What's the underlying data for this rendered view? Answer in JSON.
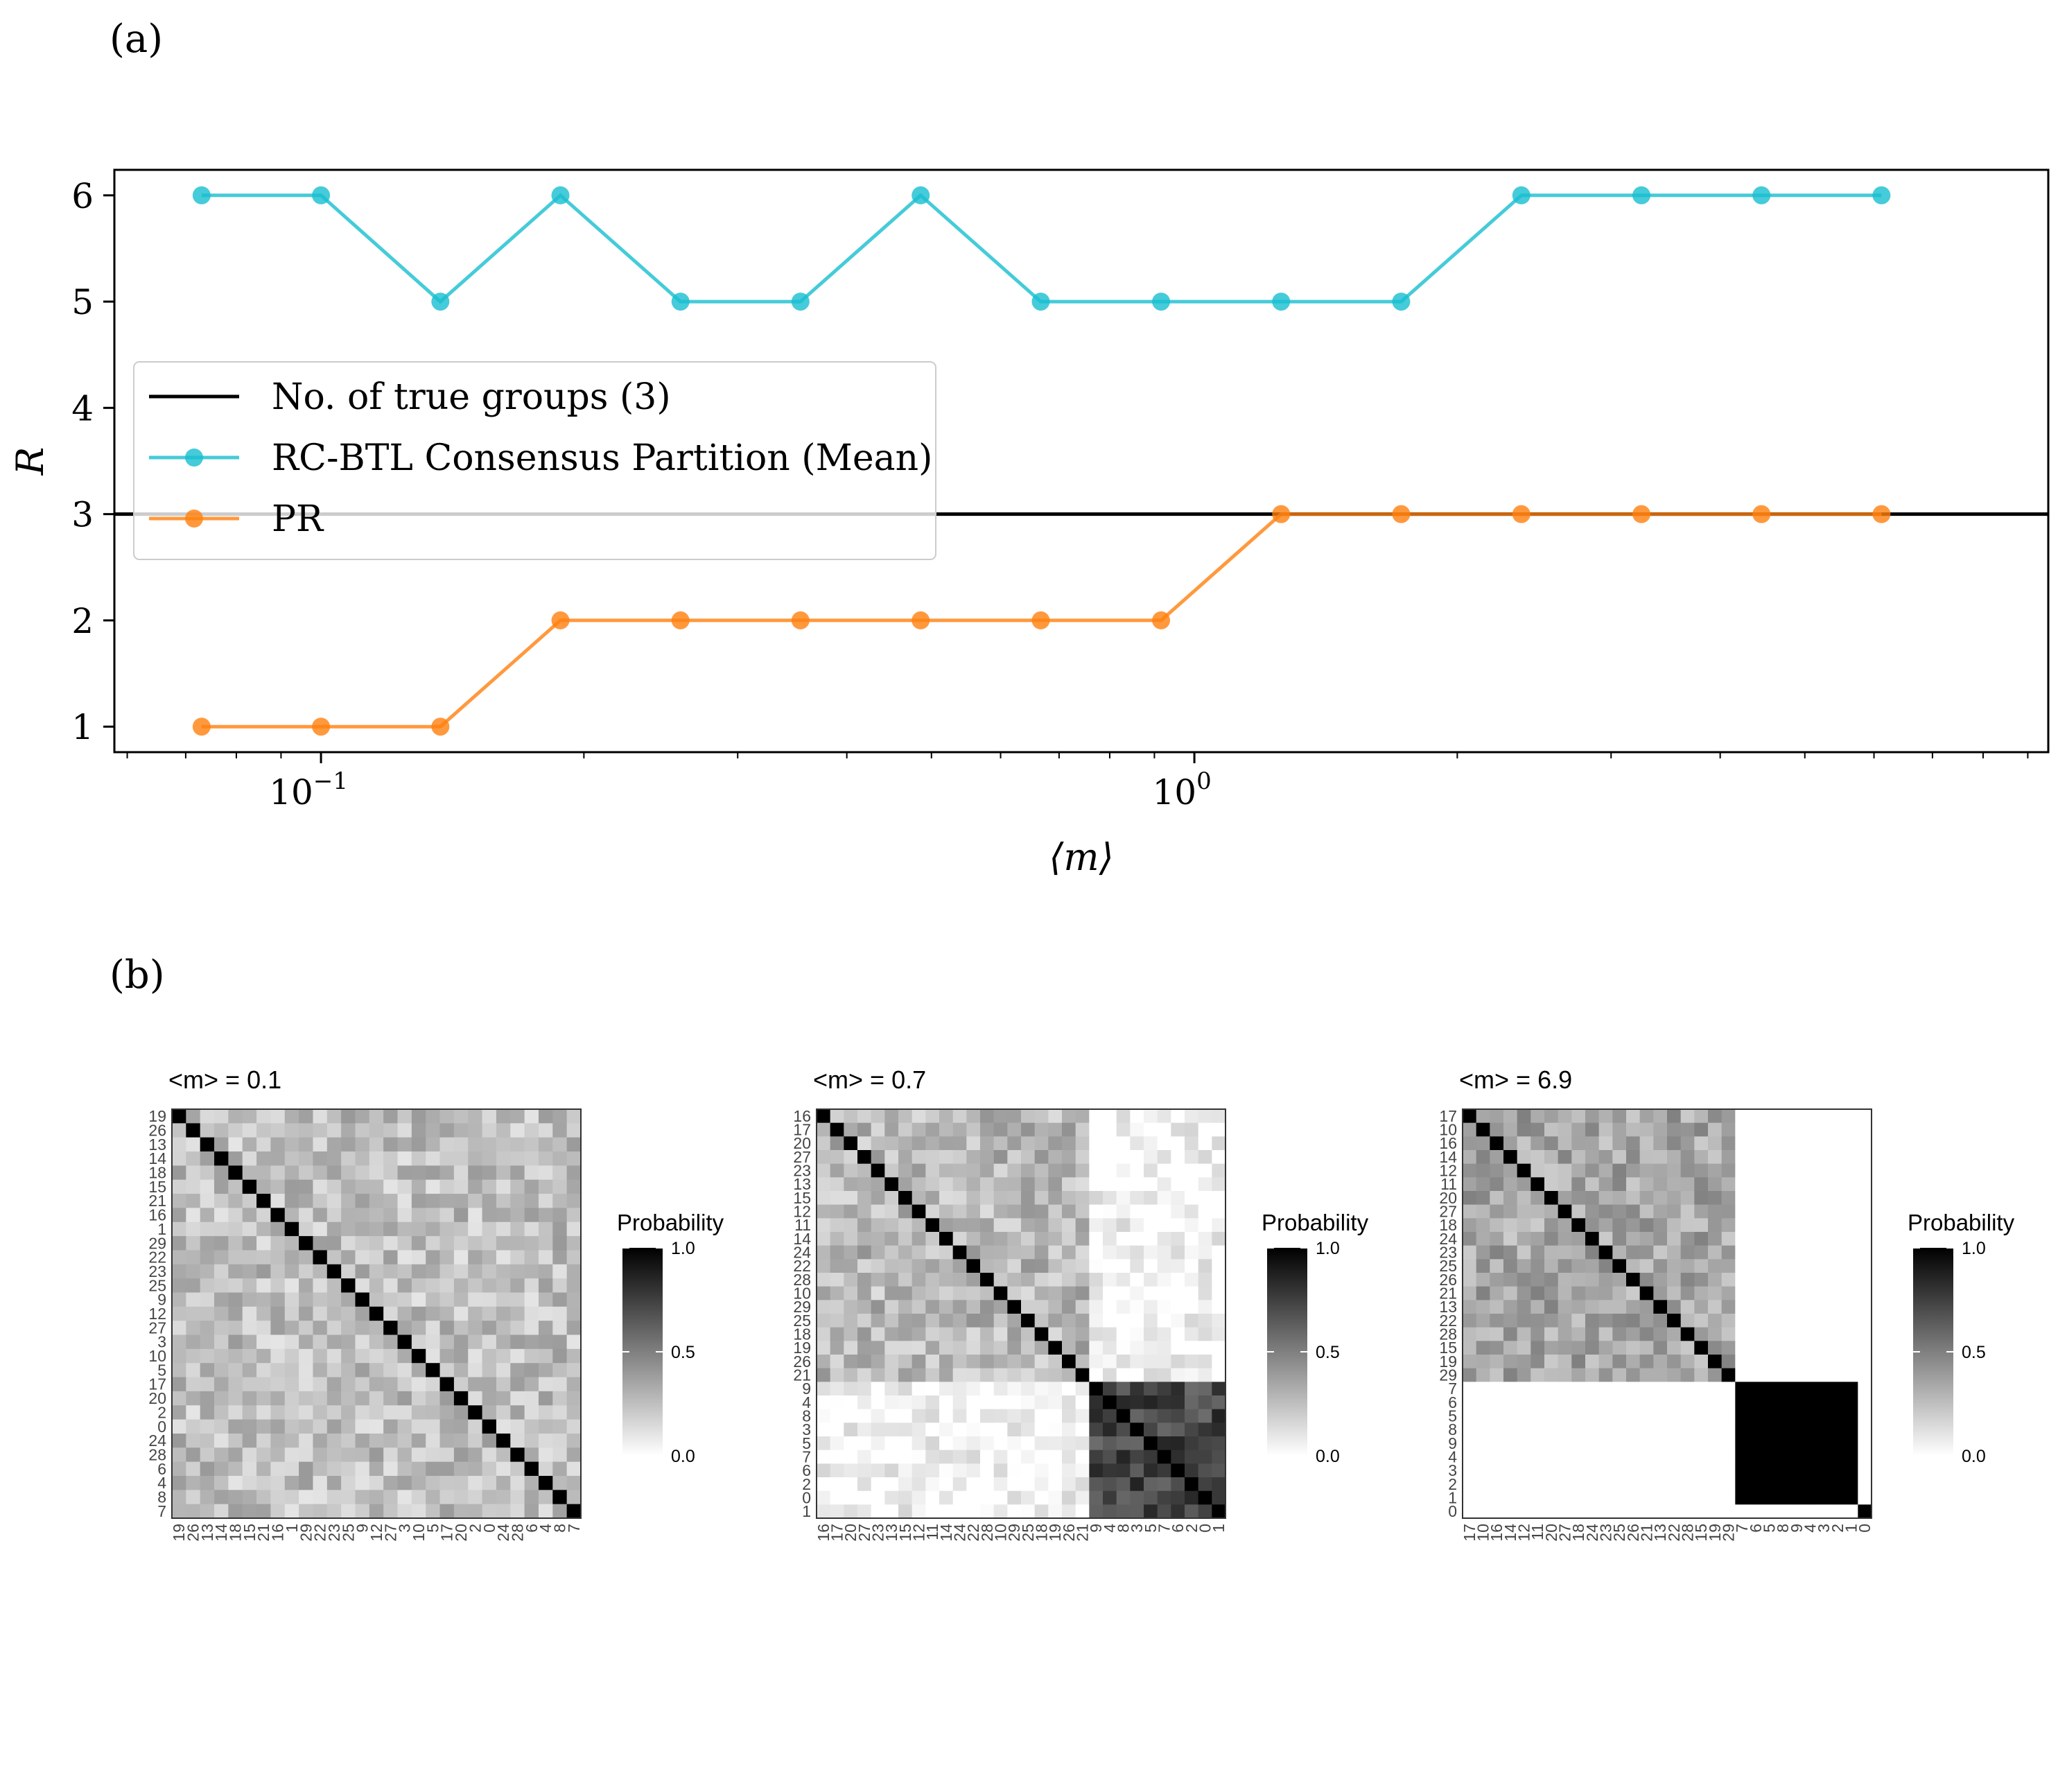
{
  "panel_a_label": "(a)",
  "panel_b_label": "(b)",
  "chart_data": [
    {
      "type": "line",
      "xlabel": "⟨m⟩",
      "ylabel": "R",
      "xscale": "log",
      "xlim": [
        0.058,
        9.5
      ],
      "ylim": [
        0.76,
        6.24
      ],
      "yticks": [
        1,
        2,
        3,
        4,
        5,
        6
      ],
      "xticks": [
        0.1,
        1
      ],
      "xtick_labels": [
        "10",
        "10"
      ],
      "xtick_exponents": [
        "−1",
        "0"
      ],
      "hline": {
        "name": "No. of true groups (3)",
        "y": 3,
        "color": "#000000"
      },
      "x": [
        0.073,
        0.1,
        0.137,
        0.188,
        0.258,
        0.354,
        0.486,
        0.667,
        0.916,
        1.257,
        1.725,
        2.368,
        3.25,
        4.46,
        6.12
      ],
      "series": [
        {
          "name": "RC-BTL Consensus Partition (Mean)",
          "color": "#17becf",
          "values": [
            6,
            6,
            5,
            6,
            5,
            5,
            6,
            5,
            5,
            5,
            5,
            6,
            6,
            6,
            6
          ]
        },
        {
          "name": "PR",
          "color": "#ff7f0e",
          "values": [
            1,
            1,
            1,
            2,
            2,
            2,
            2,
            2,
            2,
            3,
            3,
            3,
            3,
            3,
            3
          ]
        }
      ],
      "legend": {
        "placement": "center-left",
        "entries": [
          "No. of true groups (3)",
          "RC-BTL Consensus Partition (Mean)",
          "PR"
        ]
      }
    },
    {
      "type": "heatmap",
      "title": "<m> = 0.1",
      "labels": [
        "19",
        "26",
        "13",
        "14",
        "18",
        "15",
        "21",
        "16",
        "1",
        "29",
        "22",
        "23",
        "25",
        "9",
        "12",
        "27",
        "3",
        "10",
        "5",
        "17",
        "20",
        "2",
        "0",
        "24",
        "28",
        "6",
        "4",
        "8",
        "7"
      ],
      "groups": [
        29
      ],
      "within_means": [
        [
          0.25
        ]
      ],
      "legend_title": "Probability",
      "colorbar_ticks": [
        "1.0",
        "0.5",
        "0.0"
      ]
    },
    {
      "type": "heatmap",
      "title": "<m> = 0.7",
      "labels": [
        "16",
        "17",
        "20",
        "27",
        "23",
        "13",
        "15",
        "12",
        "11",
        "14",
        "24",
        "22",
        "28",
        "10",
        "29",
        "25",
        "18",
        "19",
        "26",
        "21",
        "9",
        "4",
        "8",
        "3",
        "5",
        "7",
        "6",
        "2",
        "0",
        "1"
      ],
      "groups": [
        20,
        10
      ],
      "within_means": [
        [
          0.28,
          0.02
        ],
        [
          0.02,
          0.72
        ]
      ],
      "legend_title": "Probability",
      "colorbar_ticks": [
        "1.0",
        "0.5",
        "0.0"
      ]
    },
    {
      "type": "heatmap",
      "title": "<m> = 6.9",
      "labels": [
        "17",
        "10",
        "16",
        "14",
        "12",
        "11",
        "20",
        "27",
        "18",
        "24",
        "23",
        "25",
        "26",
        "21",
        "13",
        "22",
        "28",
        "15",
        "19",
        "29",
        "7",
        "6",
        "5",
        "8",
        "9",
        "4",
        "3",
        "2",
        "1",
        "0"
      ],
      "groups": [
        20,
        9,
        1
      ],
      "within_means": [
        [
          0.35,
          0,
          0
        ],
        [
          0,
          1,
          0
        ],
        [
          0,
          0,
          1
        ]
      ],
      "legend_title": "Probability",
      "colorbar_ticks": [
        "1.0",
        "0.5",
        "0.0"
      ]
    }
  ]
}
